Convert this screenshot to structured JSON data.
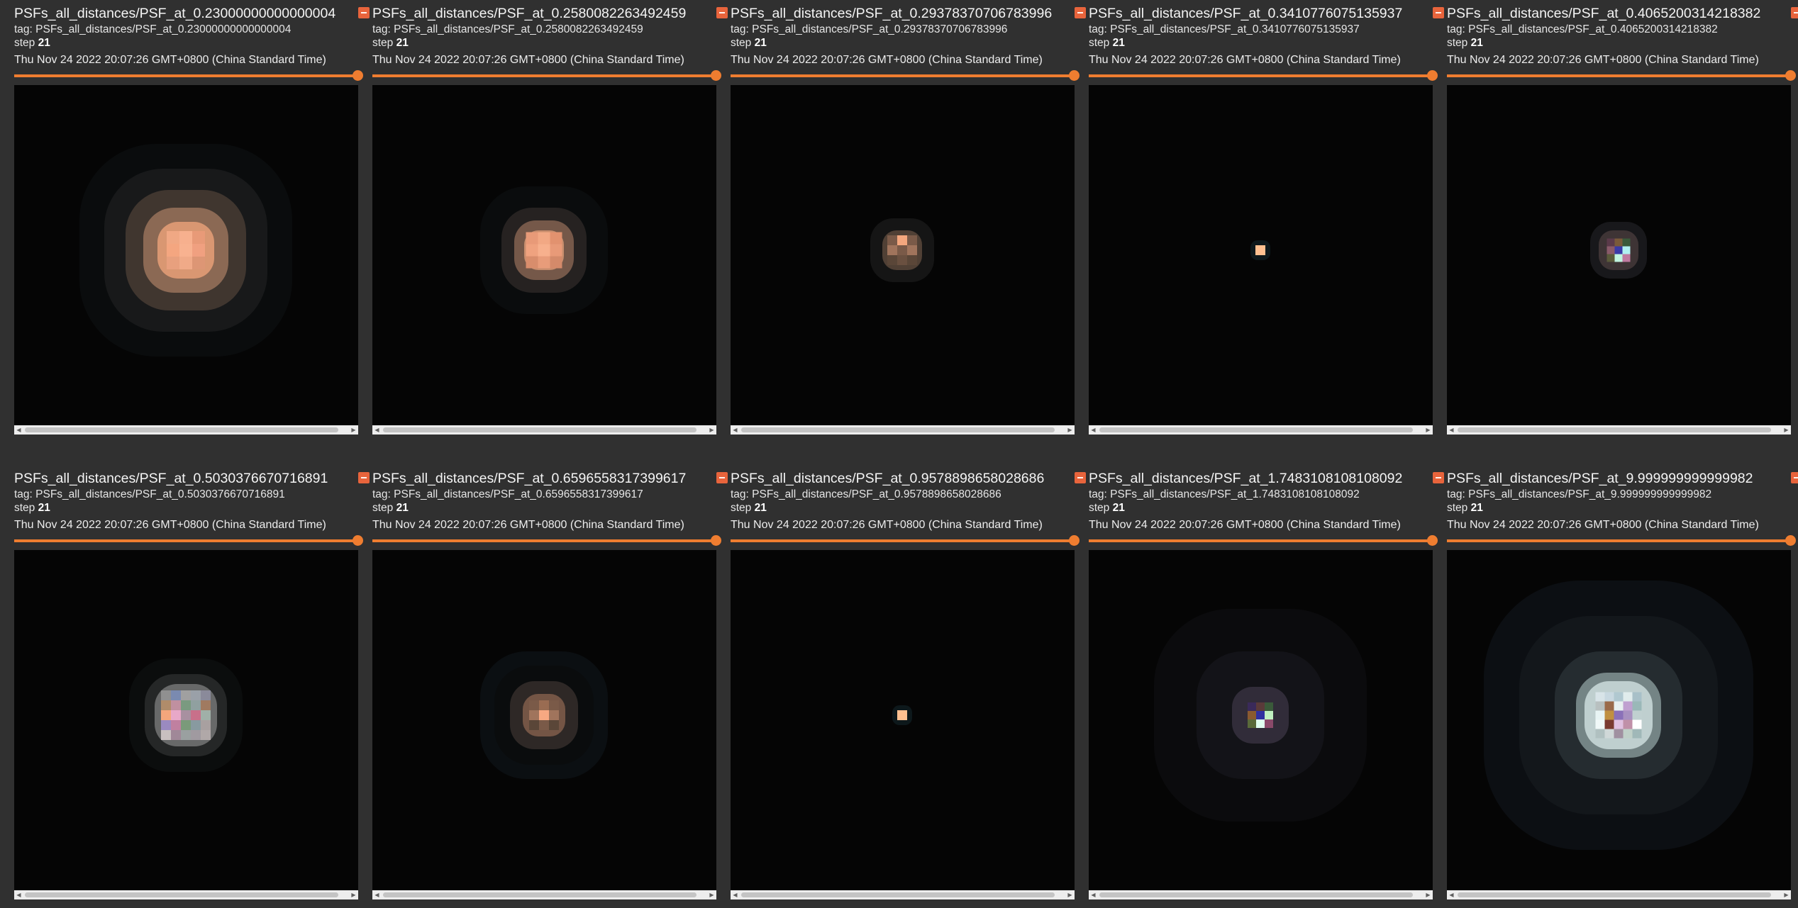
{
  "cards": [
    {
      "title": "PSFs_all_distances/PSF_at_0.23000000000000004",
      "tag": "tag: PSFs_all_distances/PSF_at_0.23000000000000004",
      "step_label": "step",
      "step": "21",
      "date": "Thu Nov 24 2022 20:07:26 GMT+0800 (China Standard Time)",
      "slider_fraction": 1.0,
      "psf": "wide-orange"
    },
    {
      "title": "PSFs_all_distances/PSF_at_0.2580082263492459",
      "tag": "tag: PSFs_all_distances/PSF_at_0.2580082263492459",
      "step_label": "step",
      "step": "21",
      "date": "Thu Nov 24 2022 20:07:26 GMT+0800 (China Standard Time)",
      "slider_fraction": 1.0,
      "psf": "medium-orange"
    },
    {
      "title": "PSFs_all_distances/PSF_at_0.29378370706783996",
      "tag": "tag: PSFs_all_distances/PSF_at_0.29378370706783996",
      "step_label": "step",
      "step": "21",
      "date": "Thu Nov 24 2022 20:07:26 GMT+0800 (China Standard Time)",
      "slider_fraction": 1.0,
      "psf": "small-orange"
    },
    {
      "title": "PSFs_all_distances/PSF_at_0.3410776075135937",
      "tag": "tag: PSFs_all_distances/PSF_at_0.3410776075135937",
      "step_label": "step",
      "step": "21",
      "date": "Thu Nov 24 2022 20:07:26 GMT+0800 (China Standard Time)",
      "slider_fraction": 1.0,
      "psf": "dot"
    },
    {
      "title": "PSFs_all_distances/PSF_at_0.4065200314218382",
      "tag": "tag: PSFs_all_distances/PSF_at_0.4065200314218382",
      "step_label": "step",
      "step": "21",
      "date": "Thu Nov 24 2022 20:07:26 GMT+0800 (China Standard Time)",
      "slider_fraction": 1.0,
      "psf": "small-color"
    },
    {
      "title": "PSFs_all_distances/PSF_at_0.5030376670716891",
      "tag": "tag: PSFs_all_distances/PSF_at_0.5030376670716891",
      "step_label": "step",
      "step": "21",
      "date": "Thu Nov 24 2022 20:07:26 GMT+0800 (China Standard Time)",
      "slider_fraction": 1.0,
      "psf": "medium-color"
    },
    {
      "title": "PSFs_all_distances/PSF_at_0.6596558317399617",
      "tag": "tag: PSFs_all_distances/PSF_at_0.6596558317399617",
      "step_label": "step",
      "step": "21",
      "date": "Thu Nov 24 2022 20:07:26 GMT+0800 (China Standard Time)",
      "slider_fraction": 1.0,
      "psf": "small-orange-ring"
    },
    {
      "title": "PSFs_all_distances/PSF_at_0.9578898658028686",
      "tag": "tag: PSFs_all_distances/PSF_at_0.9578898658028686",
      "step_label": "step",
      "step": "21",
      "date": "Thu Nov 24 2022 20:07:26 GMT+0800 (China Standard Time)",
      "slider_fraction": 1.0,
      "psf": "dot"
    },
    {
      "title": "PSFs_all_distances/PSF_at_1.7483108108108092",
      "tag": "tag: PSFs_all_distances/PSF_at_1.7483108108108092",
      "step_label": "step",
      "step": "21",
      "date": "Thu Nov 24 2022 20:07:26 GMT+0800 (China Standard Time)",
      "slider_fraction": 1.0,
      "psf": "small-color-halo"
    },
    {
      "title": "PSFs_all_distances/PSF_at_9.999999999999982",
      "tag": "tag: PSFs_all_distances/PSF_at_9.999999999999982",
      "step_label": "step",
      "step": "21",
      "date": "Thu Nov 24 2022 20:07:26 GMT+0800 (China Standard Time)",
      "slider_fraction": 1.0,
      "psf": "large-color-halo"
    }
  ],
  "colors": {
    "background": "#303030",
    "accent": "#ef7d30",
    "expand_button": "#e8643c",
    "image_background": "#050505"
  },
  "icons": {
    "expand": "expand-icon",
    "scroll_left": "chevron-left-icon",
    "scroll_right": "chevron-right-icon"
  }
}
